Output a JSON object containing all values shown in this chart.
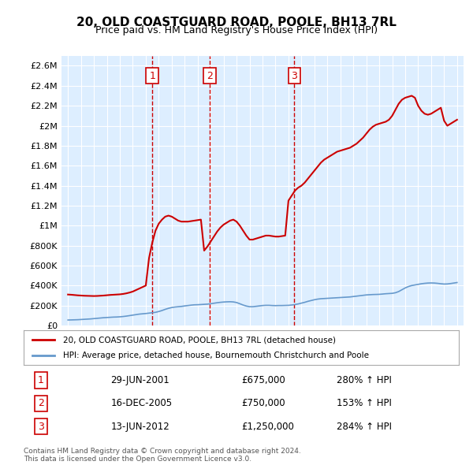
{
  "title": "20, OLD COASTGUARD ROAD, POOLE, BH13 7RL",
  "subtitle": "Price paid vs. HM Land Registry's House Price Index (HPI)",
  "background_color": "#ffffff",
  "plot_bg_color": "#ddeeff",
  "grid_color": "#ffffff",
  "red_line_color": "#cc0000",
  "blue_line_color": "#6699cc",
  "transaction_dates": [
    "2001-06-29",
    "2005-12-16",
    "2012-06-13"
  ],
  "transaction_prices": [
    675000,
    750000,
    1250000
  ],
  "transaction_labels": [
    "1",
    "2",
    "3"
  ],
  "transaction_pct": [
    "280% ↑ HPI",
    "153% ↑ HPI",
    "284% ↑ HPI"
  ],
  "transaction_display_dates": [
    "29-JUN-2001",
    "16-DEC-2005",
    "13-JUN-2012"
  ],
  "transaction_display_prices": [
    "£675,000",
    "£750,000",
    "£1,250,000"
  ],
  "legend_red_label": "20, OLD COASTGUARD ROAD, POOLE, BH13 7RL (detached house)",
  "legend_blue_label": "HPI: Average price, detached house, Bournemouth Christchurch and Poole",
  "footnote": "Contains HM Land Registry data © Crown copyright and database right 2024.\nThis data is licensed under the Open Government Licence v3.0.",
  "ylim": [
    0,
    2700000
  ],
  "yticks": [
    0,
    200000,
    400000,
    600000,
    800000,
    1000000,
    1200000,
    1400000,
    1600000,
    1800000,
    2000000,
    2200000,
    2400000,
    2600000
  ],
  "ytick_labels": [
    "£0",
    "£200K",
    "£400K",
    "£600K",
    "£800K",
    "£1M",
    "£1.2M",
    "£1.4M",
    "£1.6M",
    "£1.8M",
    "£2M",
    "£2.2M",
    "£2.4M",
    "£2.6M"
  ],
  "xlim_start": 1994.5,
  "xlim_end": 2025.5,
  "hpi_years": [
    1995,
    1995.25,
    1995.5,
    1995.75,
    1996,
    1996.25,
    1996.5,
    1996.75,
    1997,
    1997.25,
    1997.5,
    1997.75,
    1998,
    1998.25,
    1998.5,
    1998.75,
    1999,
    1999.25,
    1999.5,
    1999.75,
    2000,
    2000.25,
    2000.5,
    2000.75,
    2001,
    2001.25,
    2001.5,
    2001.75,
    2002,
    2002.25,
    2002.5,
    2002.75,
    2003,
    2003.25,
    2003.5,
    2003.75,
    2004,
    2004.25,
    2004.5,
    2004.75,
    2005,
    2005.25,
    2005.5,
    2005.75,
    2006,
    2006.25,
    2006.5,
    2006.75,
    2007,
    2007.25,
    2007.5,
    2007.75,
    2008,
    2008.25,
    2008.5,
    2008.75,
    2009,
    2009.25,
    2009.5,
    2009.75,
    2010,
    2010.25,
    2010.5,
    2010.75,
    2011,
    2011.25,
    2011.5,
    2011.75,
    2012,
    2012.25,
    2012.5,
    2012.75,
    2013,
    2013.25,
    2013.5,
    2013.75,
    2014,
    2014.25,
    2014.5,
    2014.75,
    2015,
    2015.25,
    2015.5,
    2015.75,
    2016,
    2016.25,
    2016.5,
    2016.75,
    2017,
    2017.25,
    2017.5,
    2017.75,
    2018,
    2018.25,
    2018.5,
    2018.75,
    2019,
    2019.25,
    2019.5,
    2019.75,
    2020,
    2020.25,
    2020.5,
    2020.75,
    2021,
    2021.25,
    2021.5,
    2021.75,
    2022,
    2022.25,
    2022.5,
    2022.75,
    2023,
    2023.25,
    2023.5,
    2023.75,
    2024,
    2024.25,
    2024.5,
    2024.75,
    2025
  ],
  "hpi_values": [
    55000,
    56000,
    57000,
    58000,
    60000,
    62000,
    64000,
    66000,
    69000,
    72000,
    75000,
    78000,
    80000,
    82000,
    84000,
    85000,
    87000,
    90000,
    94000,
    99000,
    104000,
    109000,
    114000,
    117000,
    120000,
    124000,
    128000,
    132000,
    140000,
    150000,
    162000,
    172000,
    180000,
    185000,
    188000,
    191000,
    196000,
    200000,
    204000,
    207000,
    208000,
    210000,
    212000,
    214000,
    218000,
    223000,
    228000,
    232000,
    235000,
    237000,
    238000,
    236000,
    230000,
    218000,
    205000,
    195000,
    188000,
    188000,
    192000,
    196000,
    200000,
    202000,
    202000,
    200000,
    199000,
    200000,
    200000,
    201000,
    202000,
    205000,
    210000,
    216000,
    224000,
    232000,
    242000,
    250000,
    258000,
    264000,
    268000,
    270000,
    272000,
    274000,
    276000,
    278000,
    280000,
    282000,
    284000,
    286000,
    290000,
    294000,
    298000,
    302000,
    306000,
    308000,
    310000,
    311000,
    312000,
    315000,
    318000,
    320000,
    322000,
    328000,
    340000,
    358000,
    376000,
    390000,
    400000,
    406000,
    412000,
    418000,
    422000,
    425000,
    426000,
    425000,
    422000,
    418000,
    415000,
    416000,
    420000,
    425000,
    430000
  ],
  "red_years": [
    1995,
    1995.25,
    1995.5,
    1995.75,
    1996,
    1996.25,
    1996.5,
    1996.75,
    1997,
    1997.25,
    1997.5,
    1997.75,
    1998,
    1998.25,
    1998.5,
    1998.75,
    1999,
    1999.25,
    1999.5,
    1999.75,
    2000,
    2000.25,
    2000.5,
    2000.75,
    2001,
    2001.25,
    2001.5,
    2001.75,
    2002,
    2002.25,
    2002.5,
    2002.75,
    2003,
    2003.25,
    2003.5,
    2003.75,
    2004,
    2004.25,
    2004.5,
    2004.75,
    2005,
    2005.25,
    2005.5,
    2005.75,
    2006,
    2006.25,
    2006.5,
    2006.75,
    2007,
    2007.25,
    2007.5,
    2007.75,
    2008,
    2008.25,
    2008.5,
    2008.75,
    2009,
    2009.25,
    2009.5,
    2009.75,
    2010,
    2010.25,
    2010.5,
    2010.75,
    2011,
    2011.25,
    2011.5,
    2011.75,
    2012,
    2012.25,
    2012.5,
    2012.75,
    2013,
    2013.25,
    2013.5,
    2013.75,
    2014,
    2014.25,
    2014.5,
    2014.75,
    2015,
    2015.25,
    2015.5,
    2015.75,
    2016,
    2016.25,
    2016.5,
    2016.75,
    2017,
    2017.25,
    2017.5,
    2017.75,
    2018,
    2018.25,
    2018.5,
    2018.75,
    2019,
    2019.25,
    2019.5,
    2019.75,
    2020,
    2020.25,
    2020.5,
    2020.75,
    2021,
    2021.25,
    2021.5,
    2021.75,
    2022,
    2022.25,
    2022.5,
    2022.75,
    2023,
    2023.25,
    2023.5,
    2023.75,
    2024,
    2024.25,
    2024.5,
    2024.75,
    2025
  ],
  "red_values": [
    310000,
    308000,
    305000,
    302000,
    300000,
    298000,
    297000,
    296000,
    295000,
    296000,
    298000,
    300000,
    303000,
    306000,
    308000,
    310000,
    312000,
    316000,
    322000,
    330000,
    340000,
    355000,
    370000,
    385000,
    400000,
    675000,
    830000,
    950000,
    1020000,
    1060000,
    1090000,
    1100000,
    1090000,
    1070000,
    1050000,
    1040000,
    1040000,
    1040000,
    1045000,
    1050000,
    1055000,
    1060000,
    750000,
    790000,
    840000,
    890000,
    940000,
    980000,
    1010000,
    1030000,
    1050000,
    1060000,
    1040000,
    1000000,
    950000,
    900000,
    860000,
    860000,
    870000,
    880000,
    890000,
    900000,
    900000,
    895000,
    890000,
    890000,
    895000,
    900000,
    1250000,
    1300000,
    1350000,
    1380000,
    1400000,
    1430000,
    1470000,
    1510000,
    1550000,
    1590000,
    1630000,
    1660000,
    1680000,
    1700000,
    1720000,
    1740000,
    1750000,
    1760000,
    1770000,
    1780000,
    1800000,
    1820000,
    1850000,
    1880000,
    1920000,
    1960000,
    1990000,
    2010000,
    2020000,
    2030000,
    2040000,
    2060000,
    2100000,
    2160000,
    2220000,
    2260000,
    2280000,
    2290000,
    2300000,
    2280000,
    2200000,
    2150000,
    2120000,
    2110000,
    2120000,
    2140000,
    2160000,
    2180000,
    2050000,
    2000000,
    2020000,
    2040000,
    2060000
  ]
}
